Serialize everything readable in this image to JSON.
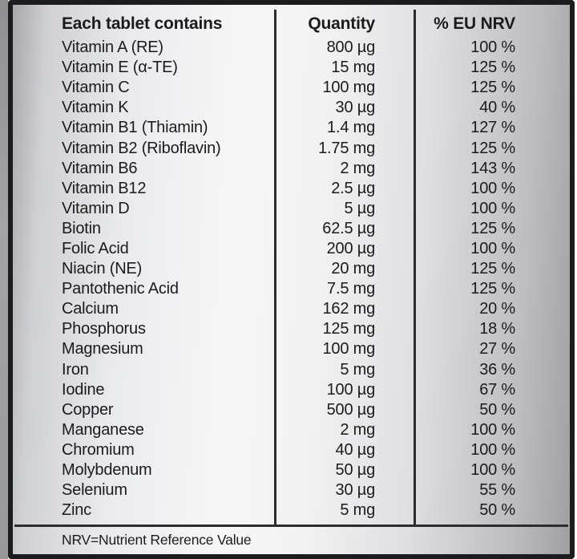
{
  "label": {
    "columns": {
      "nutrient": "Each tablet contains",
      "quantity": "Quantity",
      "nrv": "% EU NRV"
    },
    "rows": [
      {
        "name": "Vitamin A (RE)",
        "quantity": "800 µg",
        "nrv": "100 %"
      },
      {
        "name": "Vitamin E (α-TE)",
        "quantity": "15 mg",
        "nrv": "125 %"
      },
      {
        "name": "Vitamin C",
        "quantity": "100 mg",
        "nrv": "125 %"
      },
      {
        "name": "Vitamin K",
        "quantity": "30 µg",
        "nrv": "40 %"
      },
      {
        "name": "Vitamin B1 (Thiamin)",
        "quantity": "1.4 mg",
        "nrv": "127 %"
      },
      {
        "name": "Vitamin B2 (Riboflavin)",
        "quantity": "1.75 mg",
        "nrv": "125 %"
      },
      {
        "name": "Vitamin B6",
        "quantity": "2 mg",
        "nrv": "143 %"
      },
      {
        "name": "Vitamin B12",
        "quantity": "2.5 µg",
        "nrv": "100 %"
      },
      {
        "name": "Vitamin D",
        "quantity": "5 µg",
        "nrv": "100 %"
      },
      {
        "name": "Biotin",
        "quantity": "62.5 µg",
        "nrv": "125 %"
      },
      {
        "name": "Folic Acid",
        "quantity": "200 µg",
        "nrv": "100 %"
      },
      {
        "name": "Niacin (NE)",
        "quantity": "20 mg",
        "nrv": "125 %"
      },
      {
        "name": "Pantothenic Acid",
        "quantity": "7.5 mg",
        "nrv": "125 %"
      },
      {
        "name": "Calcium",
        "quantity": "162 mg",
        "nrv": "20 %"
      },
      {
        "name": "Phosphorus",
        "quantity": "125 mg",
        "nrv": "18 %"
      },
      {
        "name": "Magnesium",
        "quantity": "100 mg",
        "nrv": "27 %"
      },
      {
        "name": "Iron",
        "quantity": "5 mg",
        "nrv": "36 %"
      },
      {
        "name": "Iodine",
        "quantity": "100 µg",
        "nrv": "67 %"
      },
      {
        "name": "Copper",
        "quantity": "500 µg",
        "nrv": "50 %"
      },
      {
        "name": "Manganese",
        "quantity": "2 mg",
        "nrv": "100 %"
      },
      {
        "name": "Chromium",
        "quantity": "40 µg",
        "nrv": "100 %"
      },
      {
        "name": "Molybdenum",
        "quantity": "50 µg",
        "nrv": "100 %"
      },
      {
        "name": "Selenium",
        "quantity": "30 µg",
        "nrv": "55 %"
      },
      {
        "name": "Zinc",
        "quantity": "5 mg",
        "nrv": "50 %"
      }
    ],
    "footnote": "NRV=Nutrient Reference Value"
  },
  "colors": {
    "text": "#1b1b1d",
    "border": "#1c1c1e",
    "divider": "#2c2c2e",
    "background_silver": "#e9eaec"
  }
}
